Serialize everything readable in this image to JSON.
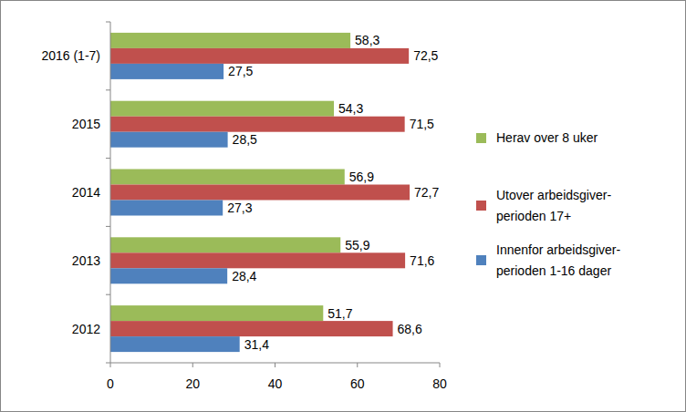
{
  "chart_data": {
    "type": "bar",
    "orientation": "horizontal",
    "categories": [
      "2012",
      "2013",
      "2014",
      "2015",
      "2016 (1-7)"
    ],
    "series": [
      {
        "name": "Herav over 8 uker",
        "color": "#9bbb59",
        "values": [
          51.7,
          55.9,
          56.9,
          54.3,
          58.3
        ],
        "value_labels": [
          "51,7",
          "55,9",
          "56,9",
          "54,3",
          "58,3"
        ]
      },
      {
        "name": "Utover arbeidsgiver-perioden 17+",
        "color": "#c0504d",
        "values": [
          68.6,
          71.6,
          72.7,
          71.5,
          72.5
        ],
        "value_labels": [
          "68,6",
          "71,6",
          "72,7",
          "71,5",
          "72,5"
        ]
      },
      {
        "name": "Innenfor arbeidsgiver-perioden 1-16 dager",
        "color": "#4f81bd",
        "values": [
          31.4,
          28.4,
          27.3,
          28.5,
          27.5
        ],
        "value_labels": [
          "31,4",
          "28,4",
          "27,3",
          "28,5",
          "27,5"
        ]
      }
    ],
    "xlim": [
      0,
      80
    ],
    "xticks": [
      0,
      20,
      40,
      60,
      80
    ],
    "grid": false,
    "legend": "right",
    "data_labels": true
  }
}
